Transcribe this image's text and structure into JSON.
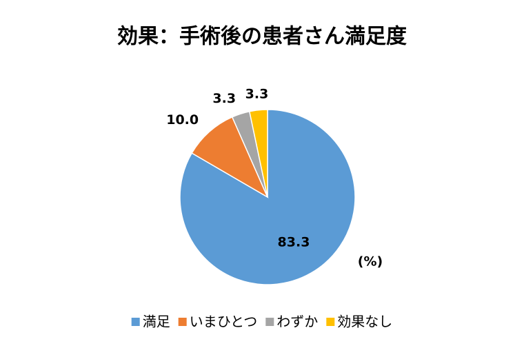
{
  "chart_data": {
    "type": "pie",
    "title": "効果：手術後の患者さん満足度",
    "categories": [
      "満足",
      "いまひとつ",
      "わずか",
      "効果なし"
    ],
    "values": [
      83.3,
      10.0,
      3.3,
      3.3
    ],
    "value_labels": [
      "83.3",
      "10.0",
      "3.3",
      "3.3"
    ],
    "colors": [
      "#5b9bd5",
      "#ed7d31",
      "#a5a5a5",
      "#ffc000"
    ],
    "unit_label": "(%)",
    "legend": "bottom"
  }
}
